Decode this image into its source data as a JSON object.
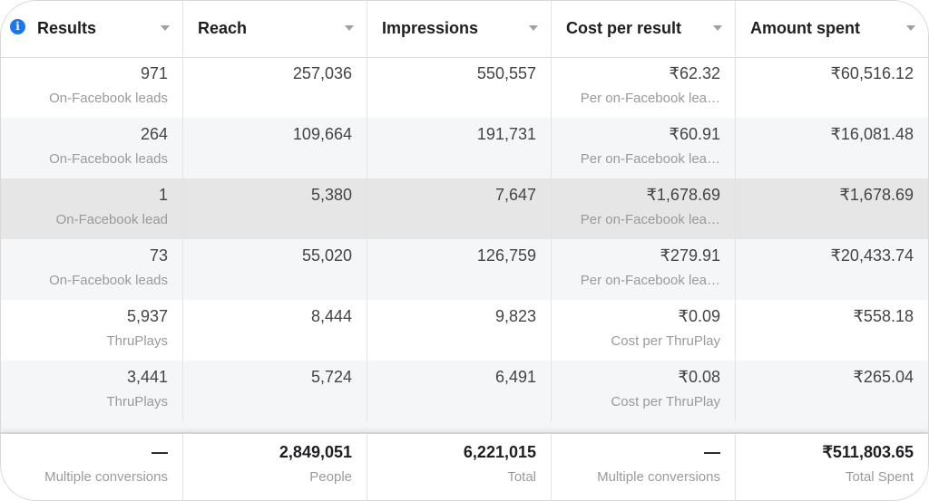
{
  "columns": [
    {
      "label": "Results"
    },
    {
      "label": "Reach"
    },
    {
      "label": "Impressions"
    },
    {
      "label": "Cost per result"
    },
    {
      "label": "Amount spent"
    }
  ],
  "rows": [
    {
      "results": "971",
      "results_sub": "On-Facebook leads",
      "reach": "257,036",
      "impressions": "550,557",
      "cpr": "₹62.32",
      "cpr_sub": "Per on-Facebook lea…",
      "spent": "₹60,516.12"
    },
    {
      "results": "264",
      "results_sub": "On-Facebook leads",
      "reach": "109,664",
      "impressions": "191,731",
      "cpr": "₹60.91",
      "cpr_sub": "Per on-Facebook lea…",
      "spent": "₹16,081.48"
    },
    {
      "results": "1",
      "results_sub": "On-Facebook lead",
      "reach": "5,380",
      "impressions": "7,647",
      "cpr": "₹1,678.69",
      "cpr_sub": "Per on-Facebook lea…",
      "spent": "₹1,678.69"
    },
    {
      "results": "73",
      "results_sub": "On-Facebook leads",
      "reach": "55,020",
      "impressions": "126,759",
      "cpr": "₹279.91",
      "cpr_sub": "Per on-Facebook lea…",
      "spent": "₹20,433.74"
    },
    {
      "results": "5,937",
      "results_sub": "ThruPlays",
      "reach": "8,444",
      "impressions": "9,823",
      "cpr": "₹0.09",
      "cpr_sub": "Cost per ThruPlay",
      "spent": "₹558.18"
    },
    {
      "results": "3,441",
      "results_sub": "ThruPlays",
      "reach": "5,724",
      "impressions": "6,491",
      "cpr": "₹0.08",
      "cpr_sub": "Cost per ThruPlay",
      "spent": "₹265.04"
    }
  ],
  "totals": {
    "results": "—",
    "results_sub": "Multiple conversions",
    "reach": "2,849,051",
    "reach_sub": "People",
    "impressions": "6,221,015",
    "impressions_sub": "Total",
    "cpr": "—",
    "cpr_sub": "Multiple conversions",
    "spent": "₹511,803.65",
    "spent_sub": "Total Spent"
  }
}
